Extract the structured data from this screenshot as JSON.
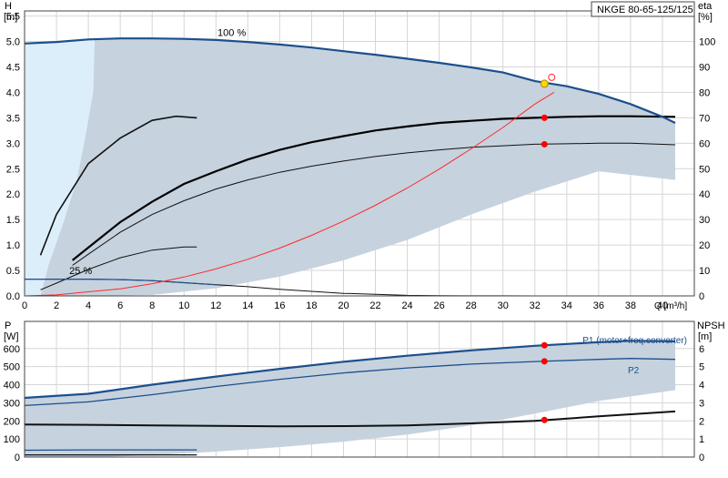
{
  "model_label": "NKGE 80-65-125/125",
  "chart_data": [
    {
      "type": "line",
      "id": "head",
      "ylabel_left": [
        "H",
        "[m]"
      ],
      "ylabel_right": [
        "eta",
        "[%]"
      ],
      "xlabel": "Q [m³/h]",
      "xlim": [
        0,
        42
      ],
      "ylim": [
        0,
        5.6
      ],
      "y2lim": [
        0,
        112
      ],
      "x_ticks": [
        "0",
        "2",
        "4",
        "6",
        "8",
        "10",
        "12",
        "14",
        "16",
        "18",
        "20",
        "22",
        "24",
        "26",
        "28",
        "30",
        "32",
        "34",
        "36",
        "38",
        "40"
      ],
      "y_ticks": [
        "0.0",
        "0.5",
        "1.0",
        "1.5",
        "2.0",
        "2.5",
        "3.0",
        "3.5",
        "4.0",
        "4.5",
        "5.0",
        "5.5"
      ],
      "y2_ticks": [
        "0",
        "10",
        "20",
        "30",
        "40",
        "50",
        "60",
        "70",
        "80",
        "90",
        "100"
      ],
      "grid": true,
      "annotations": [
        "100 %",
        "25 %"
      ],
      "colors": {
        "envelope": "#c6d2de",
        "lowflow": "#ddeefb",
        "max_curve": "#1c4f8c",
        "efficiency_curve": "#1c4f8c",
        "system": "#ff2a2a",
        "duty": "#ff0000",
        "op_point": "#ffd700"
      },
      "operating_point": {
        "x": 32.6,
        "y": 4.17
      },
      "duty_points": [
        {
          "x": 32.6,
          "y": 3.5
        },
        {
          "x": 32.6,
          "y": 2.98
        }
      ],
      "series": [
        {
          "kind": "max_head",
          "x": [
            0,
            2,
            4,
            6,
            8,
            10,
            12,
            14,
            16,
            18,
            20,
            22,
            24,
            26,
            28,
            30,
            32,
            34,
            36,
            38,
            40,
            40.8
          ],
          "y": [
            4.96,
            4.99,
            5.04,
            5.06,
            5.06,
            5.05,
            5.03,
            4.99,
            4.94,
            4.88,
            4.81,
            4.74,
            4.66,
            4.58,
            4.49,
            4.39,
            4.22,
            4.12,
            3.97,
            3.77,
            3.52,
            3.4
          ]
        },
        {
          "kind": "envelope_low",
          "x": [
            1,
            4.5,
            8,
            12,
            16,
            20,
            24,
            28,
            32,
            36,
            40.8
          ],
          "y": [
            0,
            0,
            0.02,
            0.15,
            0.38,
            0.7,
            1.1,
            1.6,
            2.05,
            2.45,
            2.28
          ]
        },
        {
          "kind": "lowflow_boundary",
          "x": [
            1,
            1.5,
            2.5,
            3.3,
            3.8,
            4.3,
            4.4
          ],
          "y": [
            0,
            0.6,
            1.5,
            2.3,
            3.1,
            4.0,
            5.0
          ]
        },
        {
          "kind": "speed_curve",
          "x": [
            0,
            2,
            4,
            6,
            8,
            10,
            12,
            14,
            16,
            18,
            20,
            22,
            24,
            26,
            28,
            30,
            32,
            34,
            36,
            38,
            40,
            40.8
          ],
          "y": [
            0.33,
            0.33,
            0.33,
            0.32,
            0.3,
            0.26,
            0.22,
            0.18,
            0.13,
            0.09,
            0.05,
            0.03,
            0.01,
            0.005,
            0.002,
            0.001,
            0.0005,
            0.0002,
            0.0001,
            5e-05,
            1e-05,
            0
          ]
        },
        {
          "kind": "speed_curve",
          "x": [
            1,
            2,
            4,
            6,
            8,
            10,
            10.8
          ],
          "y": [
            0.12,
            0.25,
            0.52,
            0.75,
            0.9,
            0.96,
            0.96
          ]
        },
        {
          "kind": "speed_curve",
          "x": [
            1,
            2,
            4,
            6,
            8,
            9.5,
            10.8
          ],
          "y": [
            0.8,
            1.6,
            2.6,
            3.1,
            3.45,
            3.53,
            3.5
          ]
        },
        {
          "kind": "speed_curve",
          "x": [
            3,
            4,
            6,
            8,
            10,
            12,
            14,
            16,
            18,
            20,
            22,
            24,
            26,
            28,
            30,
            32,
            34,
            36,
            38,
            40.8
          ],
          "y": [
            0.7,
            0.95,
            1.45,
            1.85,
            2.2,
            2.45,
            2.68,
            2.87,
            3.02,
            3.14,
            3.25,
            3.33,
            3.4,
            3.44,
            3.48,
            3.5,
            3.52,
            3.53,
            3.53,
            3.52
          ]
        },
        {
          "kind": "speed_curve",
          "x": [
            3,
            4,
            6,
            8,
            10,
            12,
            14,
            16,
            18,
            20,
            22,
            24,
            26,
            28,
            30,
            32,
            34,
            36,
            38,
            40.8
          ],
          "y": [
            0.6,
            0.82,
            1.25,
            1.6,
            1.87,
            2.1,
            2.28,
            2.43,
            2.55,
            2.65,
            2.74,
            2.81,
            2.87,
            2.92,
            2.95,
            2.98,
            2.99,
            3.0,
            3.0,
            2.97
          ]
        },
        {
          "kind": "system_curve",
          "x": [
            0,
            2,
            4,
            6,
            8,
            10,
            12,
            14,
            16,
            18,
            20,
            22,
            24,
            26,
            28,
            30,
            32,
            33.2
          ],
          "y": [
            0,
            0.02,
            0.08,
            0.14,
            0.24,
            0.37,
            0.53,
            0.72,
            0.94,
            1.19,
            1.47,
            1.78,
            2.12,
            2.49,
            2.89,
            3.31,
            3.77,
            4.0
          ]
        }
      ]
    },
    {
      "type": "line",
      "id": "power",
      "ylabel_left": [
        "P",
        "[W]"
      ],
      "ylabel_right": [
        "NPSH",
        "[m]"
      ],
      "xlim": [
        0,
        42
      ],
      "ylim": [
        0,
        750
      ],
      "y2lim": [
        0,
        7.5
      ],
      "y_ticks": [
        "0",
        "100",
        "200",
        "300",
        "400",
        "500",
        "600"
      ],
      "y2_ticks": [
        "0",
        "1",
        "2",
        "3",
        "4",
        "5",
        "6"
      ],
      "grid": true,
      "series_labels": {
        "p1": "P1 (motor+freq.converter)",
        "p2": "P2"
      },
      "duty_points": [
        {
          "x": 32.6,
          "y": 618
        },
        {
          "x": 32.6,
          "y": 529
        },
        {
          "x": 32.6,
          "y": 205
        }
      ],
      "series": [
        {
          "kind": "p1",
          "x": [
            0,
            4,
            8,
            12,
            16,
            20,
            24,
            28,
            32,
            36,
            38,
            40.8
          ],
          "y": [
            327,
            350,
            400,
            445,
            488,
            527,
            560,
            590,
            615,
            635,
            643,
            640
          ]
        },
        {
          "kind": "p2",
          "x": [
            0,
            4,
            8,
            12,
            16,
            20,
            24,
            28,
            32,
            36,
            38,
            40.8
          ],
          "y": [
            285,
            305,
            345,
            390,
            430,
            465,
            493,
            514,
            528,
            540,
            545,
            540
          ]
        },
        {
          "kind": "npsh",
          "x": [
            0,
            4,
            8,
            12,
            16,
            20,
            24,
            28,
            32,
            36,
            40.8
          ],
          "y": [
            180,
            178,
            175,
            172,
            170,
            171,
            175,
            186,
            200,
            225,
            252
          ]
        },
        {
          "kind": "min_power",
          "x": [
            0,
            4,
            8,
            10.8
          ],
          "y": [
            38,
            40,
            40,
            40
          ]
        },
        {
          "kind": "min_npsh",
          "x": [
            0,
            4,
            8,
            10.8
          ],
          "y": [
            12,
            12,
            12,
            12
          ]
        },
        {
          "kind": "envelope_low",
          "x": [
            1,
            4.5,
            8,
            12,
            16,
            20,
            24,
            28,
            32,
            36,
            40.8
          ],
          "y": [
            0,
            0,
            10,
            30,
            55,
            85,
            125,
            175,
            240,
            310,
            370
          ]
        }
      ]
    }
  ]
}
